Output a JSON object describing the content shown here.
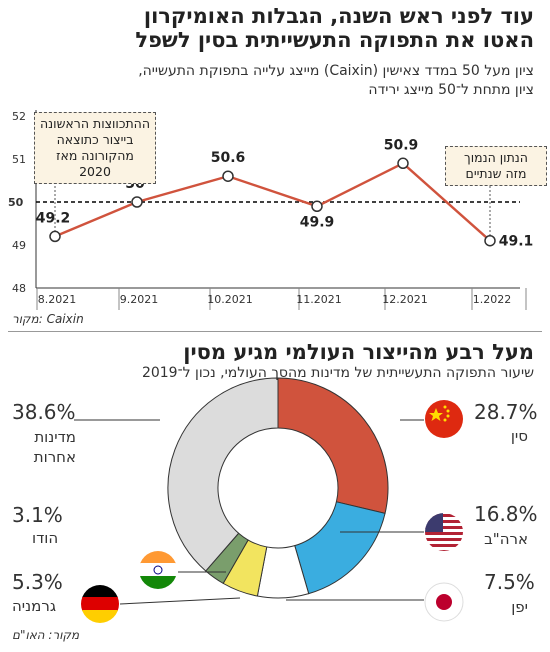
{
  "chart_top": {
    "title_line1": "עוד לפני ראש השנה, הגבלות האומיקרון",
    "title_line2": "האטו את התפוקה התעשייתית בסין לשפל",
    "subtitle_line1": "ציון מעל 50 במדד צאישין (Caixin) מייצג עלייה בתפוקת התעשייה,",
    "subtitle_line2": "ציון מתחת ל־50 מייצג ירידה",
    "source": "מקור: Caixin",
    "annotations": {
      "first": [
        "ההתכווצות הראשונה",
        "בייצור כתוצאה",
        "מהקורונה מאז 2020"
      ],
      "last": [
        "הנתון הנמוך",
        "מזה שנתיים"
      ]
    },
    "colors": {
      "line": "#d0533d",
      "box": "#fbf3e3"
    }
  },
  "chart_bottom": {
    "title": "מעל רבע מהייצור העולמי מגיע מסין",
    "subtitle": "שיעור התפוקה התעשייתית של מדינות מהסך העולמי, נכון ל־2019",
    "source": "מקור: האו\"ם",
    "labels": {
      "china": {
        "pct": "28.7%",
        "name": "סין"
      },
      "usa": {
        "pct": "16.8%",
        "name": "ארה\"ב"
      },
      "japan": {
        "pct": "7.5%",
        "name": "יפן"
      },
      "germany": {
        "pct": "5.3%",
        "name": "גרמניה"
      },
      "india": {
        "pct": "3.1%",
        "name": "הודו"
      },
      "other": {
        "pct": "38.6%",
        "name_line1": "מדינות",
        "name_line2": "אחרות"
      }
    }
  },
  "chart_data": [
    {
      "type": "line",
      "categories": [
        "8.2021",
        "9.2021",
        "10.2021",
        "11.2021",
        "12.2021",
        "1.2022"
      ],
      "values": [
        49.2,
        50,
        50.6,
        49.9,
        50.9,
        49.1
      ],
      "value_labels": [
        "49.2",
        "50",
        "50.6",
        "49.9",
        "50.9",
        "49.1"
      ],
      "y_ticks": [
        "48",
        "49",
        "50",
        "51",
        "52"
      ],
      "ylim": [
        48,
        52
      ],
      "reference_line": 50,
      "reference_label": "50",
      "color": "#d0533d"
    },
    {
      "type": "pie",
      "labels": [
        "סין",
        "ארה\"ב",
        "יפן",
        "גרמניה",
        "הודו",
        "מדינות אחרות"
      ],
      "values": [
        28.7,
        16.8,
        7.5,
        5.3,
        3.1,
        38.6
      ],
      "colors": [
        "#d0533d",
        "#3aade0",
        "#ffffff",
        "#f2e45f",
        "#7a9e6c",
        "#dcdcdc"
      ]
    }
  ]
}
